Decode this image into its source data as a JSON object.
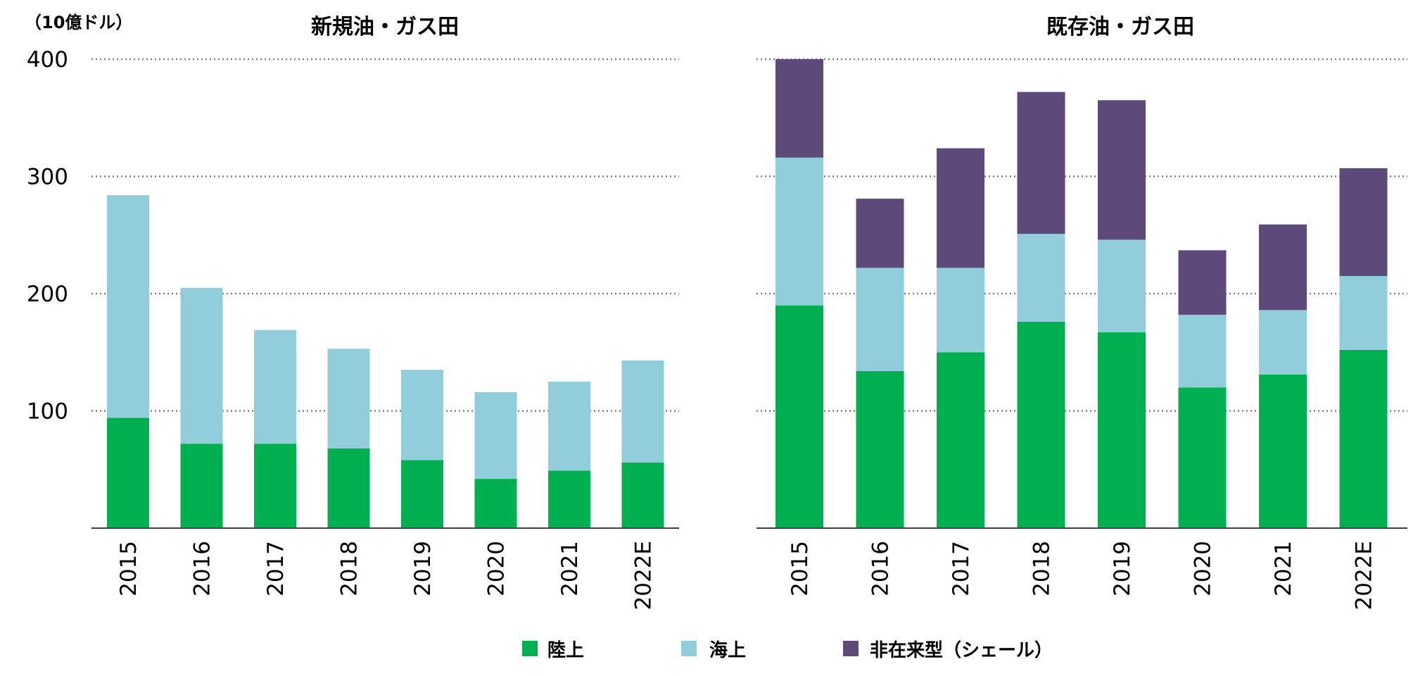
{
  "chart_data": [
    {
      "type": "bar",
      "stacked": true,
      "title": "新規油・ガス田",
      "unit_label": "（10億ドル）",
      "categories": [
        "2015",
        "2016",
        "2017",
        "2018",
        "2019",
        "2020",
        "2021",
        "2022E"
      ],
      "ylim": [
        0,
        400
      ],
      "yticks": [
        {
          "value": 100,
          "label": "100"
        },
        {
          "value": 200,
          "label": "200"
        },
        {
          "value": 300,
          "label": "300"
        },
        {
          "value": 400,
          "label": "400"
        }
      ],
      "grid": true,
      "series": [
        {
          "name": "陸上",
          "color": "#00b050",
          "values": [
            94,
            72,
            72,
            68,
            58,
            42,
            49,
            56
          ]
        },
        {
          "name": "海上",
          "color": "#92cddc",
          "values": [
            190,
            133,
            97,
            85,
            77,
            74,
            76,
            87
          ]
        }
      ]
    },
    {
      "type": "bar",
      "stacked": true,
      "title": "既存油・ガス田",
      "categories": [
        "2015",
        "2016",
        "2017",
        "2018",
        "2019",
        "2020",
        "2021",
        "2022E"
      ],
      "ylim": [
        0,
        400
      ],
      "grid": true,
      "series": [
        {
          "name": "陸上",
          "color": "#00b050",
          "values": [
            190,
            134,
            150,
            176,
            167,
            120,
            131,
            152
          ]
        },
        {
          "name": "海上",
          "color": "#92cddc",
          "values": [
            126,
            88,
            72,
            75,
            79,
            62,
            55,
            63
          ]
        },
        {
          "name": "非在来型（シェール）",
          "color": "#5e4a7a",
          "values": [
            84,
            59,
            102,
            121,
            119,
            55,
            73,
            92
          ]
        }
      ]
    }
  ],
  "legend": {
    "placement": "bottom-center",
    "items": [
      {
        "label": "陸上",
        "color": "#00b050"
      },
      {
        "label": "海上",
        "color": "#92cddc"
      },
      {
        "label": "非在来型（シェール）",
        "color": "#5e4a7a"
      }
    ]
  }
}
